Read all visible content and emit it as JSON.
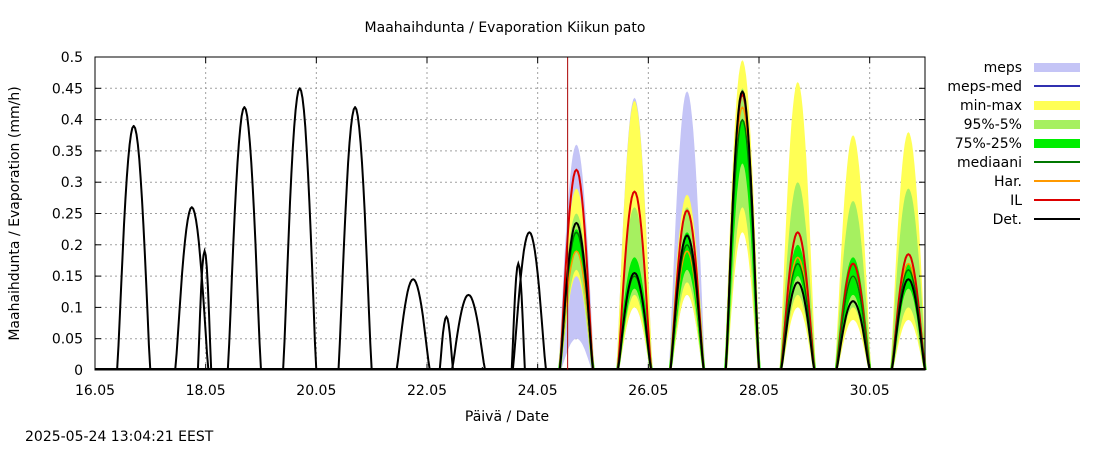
{
  "chart_data": {
    "type": "line",
    "title": "Maahaihdunta / Evaporation  Kiikun pato",
    "xlabel": "Päivä / Date",
    "ylabel": "Maahaihdunta / Evaporation (mm/h)",
    "xlim": [
      "16.05",
      "31.05"
    ],
    "ylim": [
      0,
      0.5
    ],
    "x_ticks": [
      "16.05",
      "18.05",
      "20.05",
      "22.05",
      "24.05",
      "26.05",
      "28.05",
      "30.05"
    ],
    "y_ticks": [
      "0",
      "0.05",
      "0.1",
      "0.15",
      "0.2",
      "0.25",
      "0.3",
      "0.35",
      "0.4",
      "0.45",
      "0.5"
    ],
    "grid": true,
    "legend_position": "right",
    "forecast_start": "24.05 13:00",
    "colors": {
      "meps": "#c4c4f6",
      "meps-med": "#3030b0",
      "min-max": "#ffff55",
      "95%-5%": "#a6f060",
      "75%-25%": "#00ee00",
      "mediaani": "#007700",
      "Har.": "#ff9900",
      "IL": "#dd0000",
      "Det.": "#000000",
      "now_line": "#aa0000"
    },
    "legend": [
      "meps",
      "meps-med",
      "min-max",
      "95%-5%",
      "75%-25%",
      "mediaani",
      "Har.",
      "IL",
      "Det."
    ],
    "series_daily_peaks": {
      "day_index": [
        16.7,
        17.75,
        18.7,
        19.7,
        20.7,
        21.75,
        22.75,
        23.85,
        24.7,
        25.75,
        26.7,
        27.7,
        28.7,
        29.7,
        30.7
      ],
      "Det.": [
        0.39,
        0.26,
        0.42,
        0.45,
        0.42,
        0.145,
        0.12,
        0.22,
        0.235,
        0.155,
        0.215,
        0.445,
        0.14,
        0.11,
        0.145
      ],
      "IL": [
        null,
        null,
        null,
        null,
        null,
        null,
        null,
        null,
        0.32,
        0.285,
        0.255,
        0.44,
        0.22,
        0.17,
        0.185
      ],
      "Har.": [
        null,
        null,
        null,
        null,
        null,
        null,
        null,
        null,
        0.19,
        0.15,
        0.19,
        0.42,
        0.18,
        0.15,
        0.17
      ],
      "mediaani": [
        null,
        null,
        null,
        null,
        null,
        null,
        null,
        null,
        0.22,
        0.15,
        0.2,
        0.4,
        0.17,
        0.15,
        0.16
      ],
      "min-max": [
        null,
        null,
        null,
        null,
        null,
        null,
        null,
        null,
        [
          0.15,
          0.29
        ],
        [
          0.1,
          0.43
        ],
        [
          0.12,
          0.28
        ],
        [
          0.22,
          0.495
        ],
        [
          0.1,
          0.46
        ],
        [
          0.08,
          0.375
        ],
        [
          0.08,
          0.38
        ]
      ],
      "95%-5%": [
        null,
        null,
        null,
        null,
        null,
        null,
        null,
        null,
        [
          0.16,
          0.25
        ],
        [
          0.12,
          0.26
        ],
        [
          0.14,
          0.26
        ],
        [
          0.26,
          0.45
        ],
        [
          0.12,
          0.3
        ],
        [
          0.1,
          0.27
        ],
        [
          0.1,
          0.29
        ]
      ],
      "75%-25%": [
        null,
        null,
        null,
        null,
        null,
        null,
        null,
        null,
        [
          0.19,
          0.225
        ],
        [
          0.13,
          0.18
        ],
        [
          0.16,
          0.22
        ],
        [
          0.33,
          0.4
        ],
        [
          0.15,
          0.2
        ],
        [
          0.12,
          0.18
        ],
        [
          0.13,
          0.17
        ]
      ],
      "meps": [
        null,
        null,
        null,
        null,
        null,
        null,
        null,
        null,
        [
          0.05,
          0.36
        ],
        [
          0.1,
          0.435
        ],
        [
          0.12,
          0.445
        ],
        null,
        null,
        null,
        null
      ]
    },
    "secondary_peaks": [
      {
        "day": 17.98,
        "Det.": 0.19
      },
      {
        "day": 23.65,
        "Det.": 0.17
      },
      {
        "day": 22.35,
        "Det.": 0.085
      }
    ]
  },
  "timestamp": "2025-05-24 13:04:21 EEST"
}
